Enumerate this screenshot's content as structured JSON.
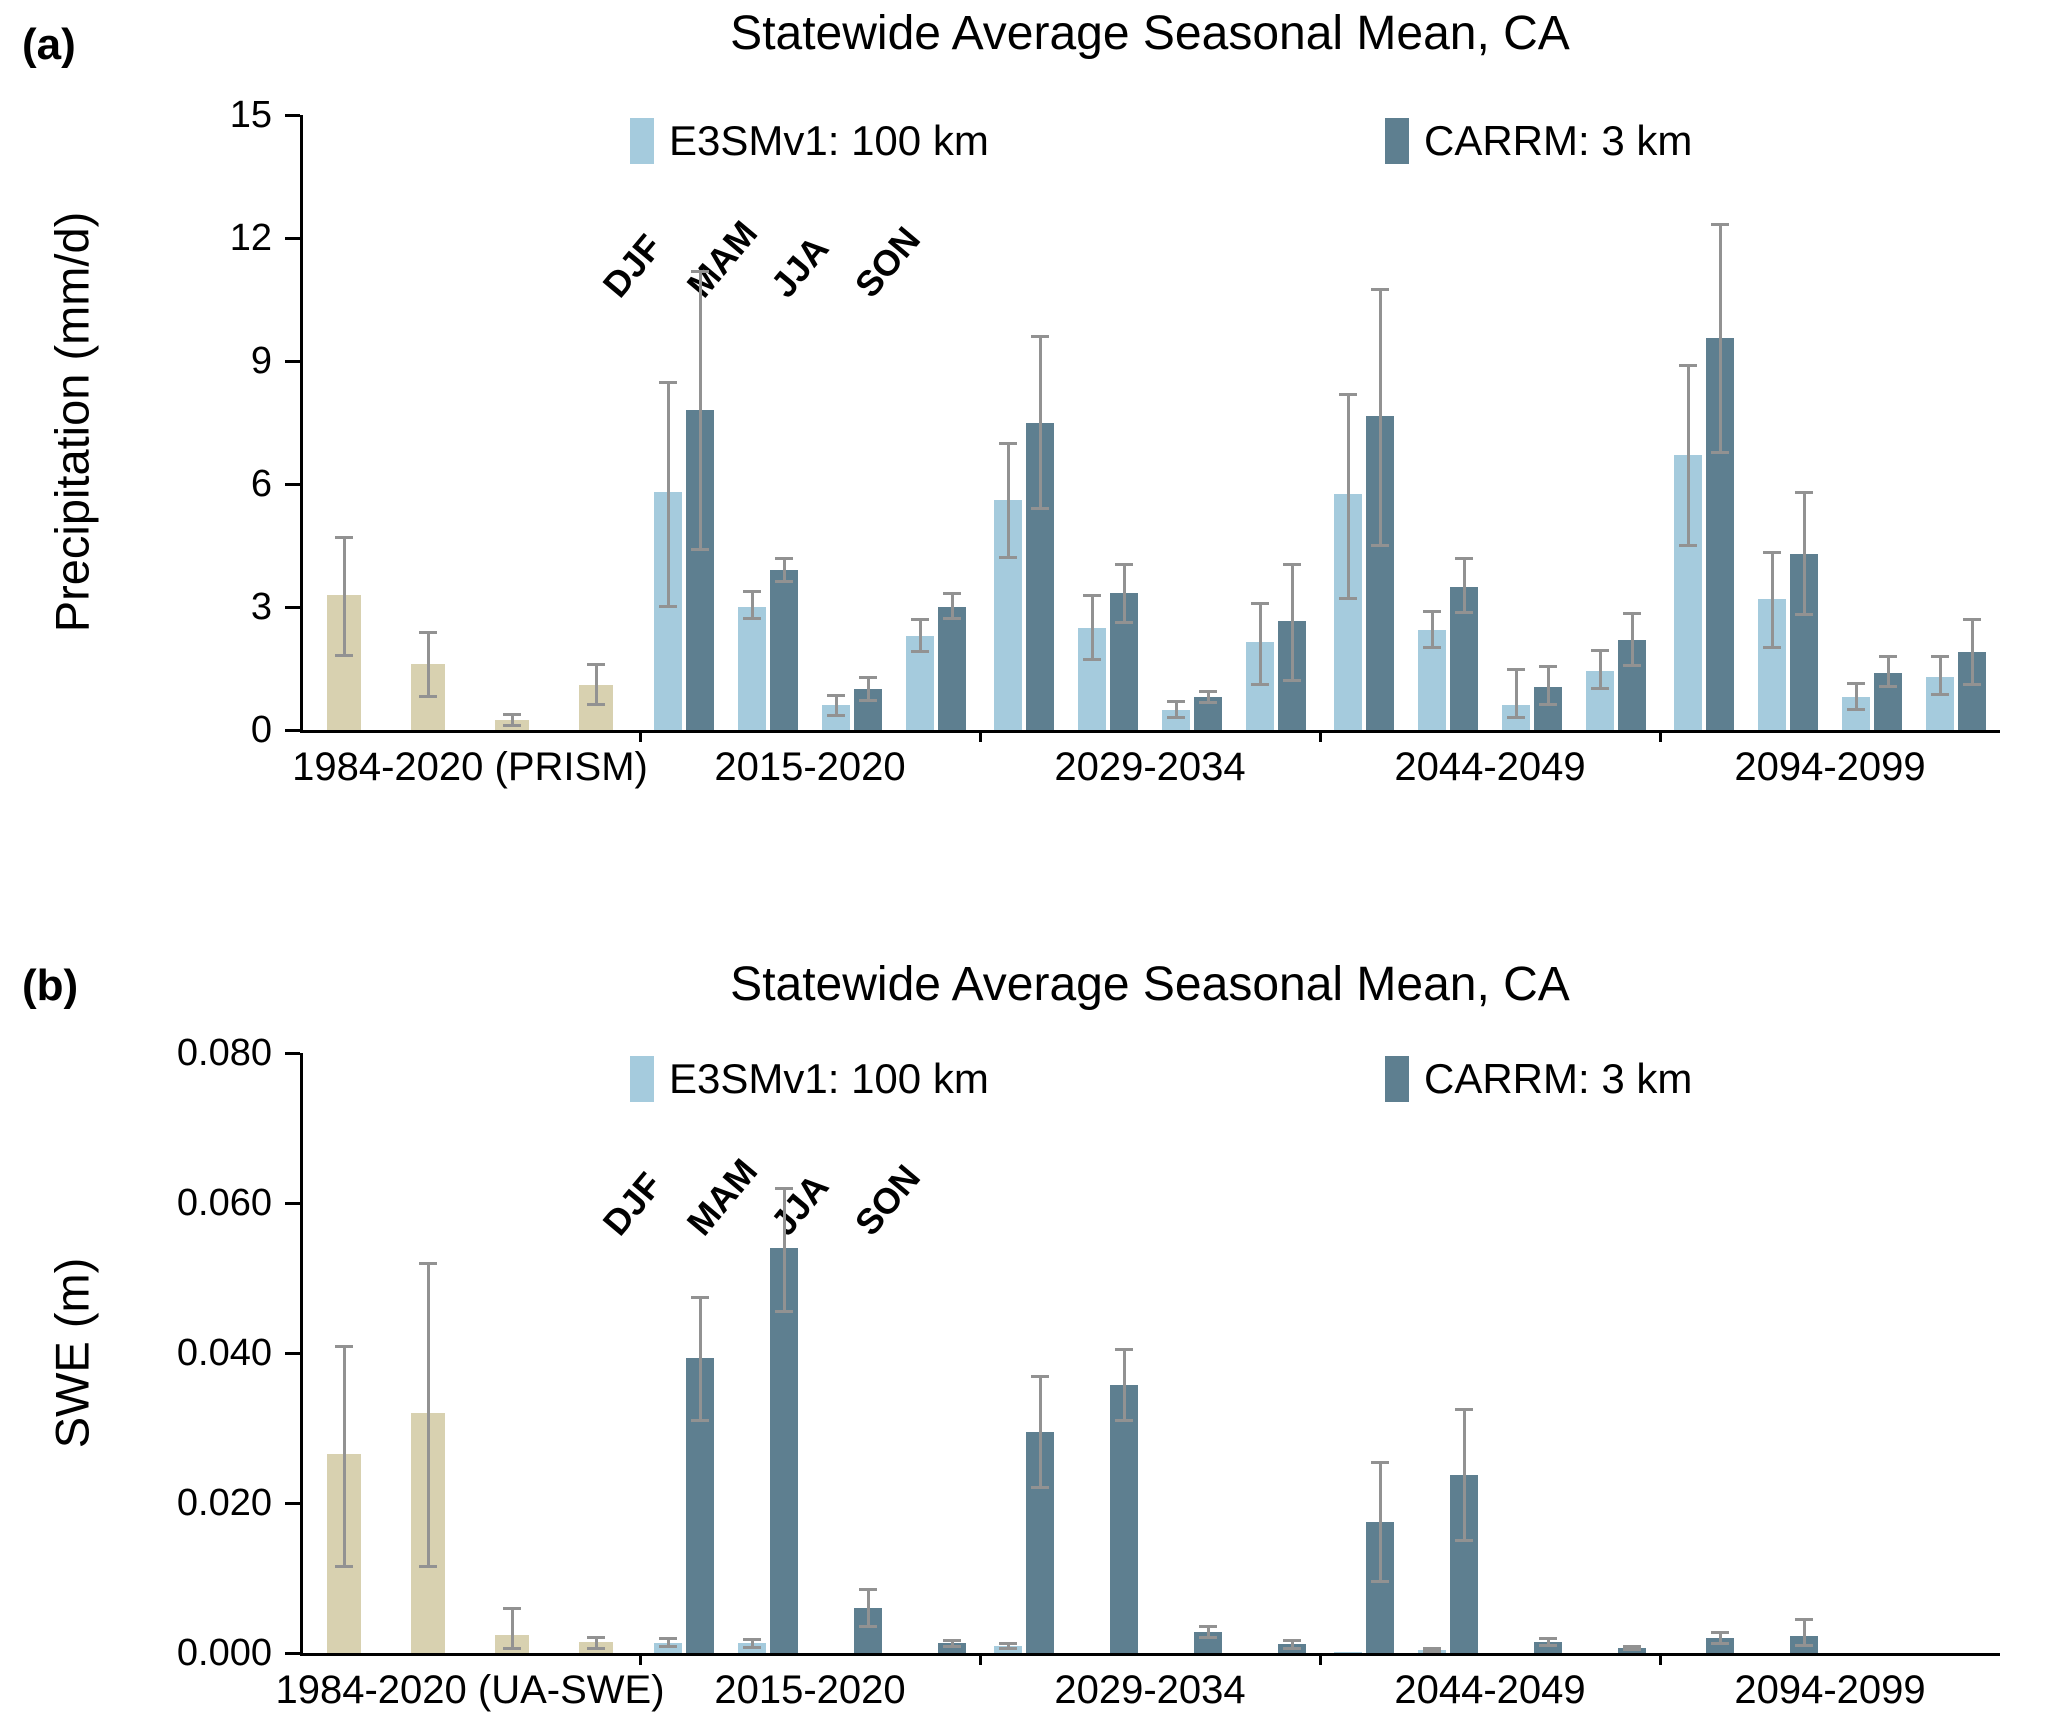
{
  "chart_data": [
    {
      "type": "bar",
      "panel_label": "(a)",
      "title": "Statewide Average Seasonal Mean, CA",
      "ylabel": "Precipitation (mm/d)",
      "ylim": [
        0,
        15
      ],
      "yticks": [
        {
          "value": 0,
          "label": "0"
        },
        {
          "value": 3,
          "label": "3"
        },
        {
          "value": 6,
          "label": "6"
        },
        {
          "value": 9,
          "label": "9"
        },
        {
          "value": 12,
          "label": "12"
        },
        {
          "value": 15,
          "label": "15"
        }
      ],
      "seasons": [
        "DJF",
        "MAM",
        "JJA",
        "SON"
      ],
      "season_labels_shown": true,
      "legend_position": "top-inside",
      "grid": false,
      "legend": [
        {
          "series": "e3sm",
          "label": "E3SMv1: 100 km",
          "color": "#a5cbdd"
        },
        {
          "series": "carrm",
          "label": "CARRM: 3 km",
          "color": "#5e7f90"
        }
      ],
      "colors": {
        "obs": "#d8d1b0",
        "e3sm": "#a5cbdd",
        "carrm": "#5e7f90",
        "error": "#929292",
        "axis": "#000000"
      },
      "groups": [
        {
          "label": "1984-2020 (PRISM)",
          "kind": "observation",
          "bars": [
            {
              "season": "DJF",
              "series": "obs",
              "value": 3.3,
              "err": [
                1.8,
                4.7
              ]
            },
            {
              "season": "MAM",
              "series": "obs",
              "value": 1.6,
              "err": [
                0.8,
                2.4
              ]
            },
            {
              "season": "JJA",
              "series": "obs",
              "value": 0.25,
              "err": [
                0.1,
                0.4
              ]
            },
            {
              "season": "SON",
              "series": "obs",
              "value": 1.1,
              "err": [
                0.6,
                1.6
              ]
            }
          ]
        },
        {
          "label": "2015-2020",
          "kind": "model",
          "bars": [
            {
              "season": "DJF",
              "series": "e3sm",
              "value": 5.8,
              "err": [
                3.0,
                8.5
              ]
            },
            {
              "season": "DJF",
              "series": "carrm",
              "value": 7.8,
              "err": [
                4.4,
                11.2
              ]
            },
            {
              "season": "MAM",
              "series": "e3sm",
              "value": 3.0,
              "err": [
                2.7,
                3.4
              ]
            },
            {
              "season": "MAM",
              "series": "carrm",
              "value": 3.9,
              "err": [
                3.6,
                4.2
              ]
            },
            {
              "season": "JJA",
              "series": "e3sm",
              "value": 0.6,
              "err": [
                0.35,
                0.85
              ]
            },
            {
              "season": "JJA",
              "series": "carrm",
              "value": 1.0,
              "err": [
                0.7,
                1.3
              ]
            },
            {
              "season": "SON",
              "series": "e3sm",
              "value": 2.3,
              "err": [
                1.9,
                2.7
              ]
            },
            {
              "season": "SON",
              "series": "carrm",
              "value": 3.0,
              "err": [
                2.7,
                3.35
              ]
            }
          ]
        },
        {
          "label": "2029-2034",
          "kind": "model",
          "bars": [
            {
              "season": "DJF",
              "series": "e3sm",
              "value": 5.6,
              "err": [
                4.2,
                7.0
              ]
            },
            {
              "season": "DJF",
              "series": "carrm",
              "value": 7.5,
              "err": [
                5.4,
                9.6
              ]
            },
            {
              "season": "MAM",
              "series": "e3sm",
              "value": 2.5,
              "err": [
                1.7,
                3.3
              ]
            },
            {
              "season": "MAM",
              "series": "carrm",
              "value": 3.35,
              "err": [
                2.6,
                4.05
              ]
            },
            {
              "season": "JJA",
              "series": "e3sm",
              "value": 0.5,
              "err": [
                0.3,
                0.7
              ]
            },
            {
              "season": "JJA",
              "series": "carrm",
              "value": 0.8,
              "err": [
                0.65,
                0.95
              ]
            },
            {
              "season": "SON",
              "series": "e3sm",
              "value": 2.15,
              "err": [
                1.1,
                3.1
              ]
            },
            {
              "season": "SON",
              "series": "carrm",
              "value": 2.65,
              "err": [
                1.2,
                4.05
              ]
            }
          ]
        },
        {
          "label": "2044-2049",
          "kind": "model",
          "bars": [
            {
              "season": "DJF",
              "series": "e3sm",
              "value": 5.75,
              "err": [
                3.2,
                8.2
              ]
            },
            {
              "season": "DJF",
              "series": "carrm",
              "value": 7.65,
              "err": [
                4.5,
                10.75
              ]
            },
            {
              "season": "MAM",
              "series": "e3sm",
              "value": 2.45,
              "err": [
                2.0,
                2.9
              ]
            },
            {
              "season": "MAM",
              "series": "carrm",
              "value": 3.5,
              "err": [
                2.85,
                4.2
              ]
            },
            {
              "season": "JJA",
              "series": "e3sm",
              "value": 0.6,
              "err": [
                0.3,
                1.5
              ]
            },
            {
              "season": "JJA",
              "series": "carrm",
              "value": 1.05,
              "err": [
                0.6,
                1.55
              ]
            },
            {
              "season": "SON",
              "series": "e3sm",
              "value": 1.45,
              "err": [
                1.0,
                1.95
              ]
            },
            {
              "season": "SON",
              "series": "carrm",
              "value": 2.2,
              "err": [
                1.55,
                2.85
              ]
            }
          ]
        },
        {
          "label": "2094-2099",
          "kind": "model",
          "bars": [
            {
              "season": "DJF",
              "series": "e3sm",
              "value": 6.7,
              "err": [
                4.5,
                8.9
              ]
            },
            {
              "season": "DJF",
              "series": "carrm",
              "value": 9.55,
              "err": [
                6.75,
                12.35
              ]
            },
            {
              "season": "MAM",
              "series": "e3sm",
              "value": 3.2,
              "err": [
                2.0,
                4.35
              ]
            },
            {
              "season": "MAM",
              "series": "carrm",
              "value": 4.3,
              "err": [
                2.8,
                5.8
              ]
            },
            {
              "season": "JJA",
              "series": "e3sm",
              "value": 0.8,
              "err": [
                0.5,
                1.15
              ]
            },
            {
              "season": "JJA",
              "series": "carrm",
              "value": 1.4,
              "err": [
                1.05,
                1.8
              ]
            },
            {
              "season": "SON",
              "series": "e3sm",
              "value": 1.3,
              "err": [
                0.85,
                1.8
              ]
            },
            {
              "season": "SON",
              "series": "carrm",
              "value": 1.9,
              "err": [
                1.1,
                2.7
              ]
            }
          ]
        }
      ]
    },
    {
      "type": "bar",
      "panel_label": "(b)",
      "title": "Statewide Average Seasonal Mean, CA",
      "ylabel": "SWE (m)",
      "ylim": [
        0,
        0.08
      ],
      "yticks": [
        {
          "value": 0.0,
          "label": "0.000"
        },
        {
          "value": 0.02,
          "label": "0.020"
        },
        {
          "value": 0.04,
          "label": "0.040"
        },
        {
          "value": 0.06,
          "label": "0.060"
        },
        {
          "value": 0.08,
          "label": "0.080"
        }
      ],
      "seasons": [
        "DJF",
        "MAM",
        "JJA",
        "SON"
      ],
      "season_labels_shown": true,
      "legend_position": "top-inside",
      "grid": false,
      "legend": [
        {
          "series": "e3sm",
          "label": "E3SMv1: 100 km",
          "color": "#a5cbdd"
        },
        {
          "series": "carrm",
          "label": "CARRM: 3 km",
          "color": "#5e7f90"
        }
      ],
      "colors": {
        "obs": "#d8d1b0",
        "e3sm": "#a5cbdd",
        "carrm": "#5e7f90",
        "error": "#929292",
        "axis": "#000000"
      },
      "groups": [
        {
          "label": "1984-2020 (UA-SWE)",
          "kind": "observation",
          "bars": [
            {
              "season": "DJF",
              "series": "obs",
              "value": 0.0265,
              "err": [
                0.0115,
                0.041
              ]
            },
            {
              "season": "MAM",
              "series": "obs",
              "value": 0.032,
              "err": [
                0.0115,
                0.052
              ]
            },
            {
              "season": "JJA",
              "series": "obs",
              "value": 0.0024,
              "err": [
                0.0005,
                0.006
              ]
            },
            {
              "season": "SON",
              "series": "obs",
              "value": 0.0015,
              "err": [
                0.0005,
                0.0022
              ]
            }
          ]
        },
        {
          "label": "2015-2020",
          "kind": "model",
          "bars": [
            {
              "season": "DJF",
              "series": "e3sm",
              "value": 0.0014,
              "err": [
                0.0008,
                0.002
              ]
            },
            {
              "season": "DJF",
              "series": "carrm",
              "value": 0.0393,
              "err": [
                0.031,
                0.0475
              ]
            },
            {
              "season": "MAM",
              "series": "e3sm",
              "value": 0.0013,
              "err": [
                0.0007,
                0.0019
              ]
            },
            {
              "season": "MAM",
              "series": "carrm",
              "value": 0.054,
              "err": [
                0.0455,
                0.062
              ]
            },
            {
              "season": "JJA",
              "series": "carrm",
              "value": 0.006,
              "err": [
                0.0035,
                0.0085
              ]
            },
            {
              "season": "SON",
              "series": "carrm",
              "value": 0.0013,
              "err": [
                0.0008,
                0.0018
              ]
            }
          ]
        },
        {
          "label": "2029-2034",
          "kind": "model",
          "bars": [
            {
              "season": "DJF",
              "series": "e3sm",
              "value": 0.001,
              "err": [
                0.0006,
                0.0014
              ]
            },
            {
              "season": "DJF",
              "series": "carrm",
              "value": 0.0295,
              "err": [
                0.022,
                0.037
              ]
            },
            {
              "season": "MAM",
              "series": "carrm",
              "value": 0.0358,
              "err": [
                0.031,
                0.0405
              ]
            },
            {
              "season": "JJA",
              "series": "carrm",
              "value": 0.0028,
              "err": [
                0.002,
                0.0036
              ]
            },
            {
              "season": "SON",
              "series": "carrm",
              "value": 0.0012,
              "err": [
                0.0006,
                0.0018
              ]
            }
          ]
        },
        {
          "label": "2044-2049",
          "kind": "model",
          "bars": [
            {
              "season": "DJF",
              "series": "e3sm",
              "value": 0.0002
            },
            {
              "season": "DJF",
              "series": "carrm",
              "value": 0.0175,
              "err": [
                0.0095,
                0.0255
              ]
            },
            {
              "season": "MAM",
              "series": "e3sm",
              "value": 0.0004,
              "err": [
                0.0001,
                0.0007
              ]
            },
            {
              "season": "MAM",
              "series": "carrm",
              "value": 0.0238,
              "err": [
                0.015,
                0.0325
              ]
            },
            {
              "season": "JJA",
              "series": "carrm",
              "value": 0.0015,
              "err": [
                0.001,
                0.002
              ]
            },
            {
              "season": "SON",
              "series": "carrm",
              "value": 0.0007,
              "err": [
                0.0004,
                0.001
              ]
            }
          ]
        },
        {
          "label": "2094-2099",
          "kind": "model",
          "bars": [
            {
              "season": "DJF",
              "series": "carrm",
              "value": 0.002,
              "err": [
                0.0012,
                0.0028
              ]
            },
            {
              "season": "MAM",
              "series": "carrm",
              "value": 0.0023,
              "err": [
                0.001,
                0.0045
              ]
            }
          ]
        }
      ]
    }
  ]
}
